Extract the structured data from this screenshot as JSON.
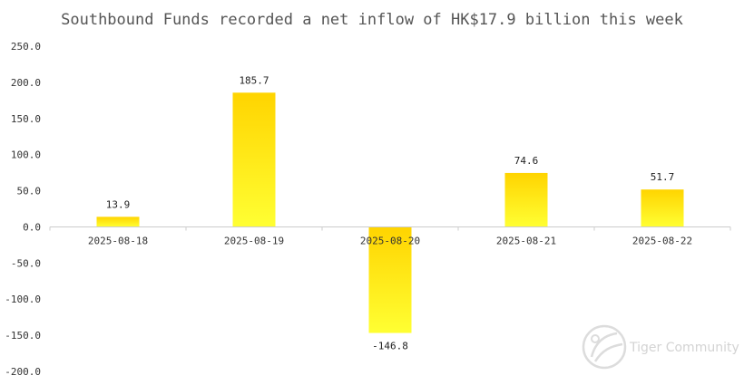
{
  "chart_data": {
    "type": "bar",
    "title": "Southbound Funds recorded a net inflow of HK$17.9 billion this week",
    "xlabel": "",
    "ylabel": "",
    "categories": [
      "2025-08-18",
      "2025-08-19",
      "2025-08-20",
      "2025-08-21",
      "2025-08-22"
    ],
    "values": [
      13.9,
      185.7,
      -146.8,
      74.6,
      51.7
    ],
    "value_labels": [
      "13.9",
      "185.7",
      "-146.8",
      "74.6",
      "51.7"
    ],
    "ylim": [
      -200,
      250
    ],
    "y_ticks": [
      "250.0",
      "200.0",
      "150.0",
      "100.0",
      "50.0",
      "0.0",
      "-50.0",
      "-100.0",
      "-150.0",
      "-200.0"
    ],
    "grid": false,
    "legend": "none",
    "colors": {
      "bar_top": "#ffd400",
      "bar_bottom": "#ffff33",
      "axis": "#cccccc"
    }
  },
  "watermark": {
    "text": "Tiger Community",
    "icon": "tiger-logo-icon"
  }
}
